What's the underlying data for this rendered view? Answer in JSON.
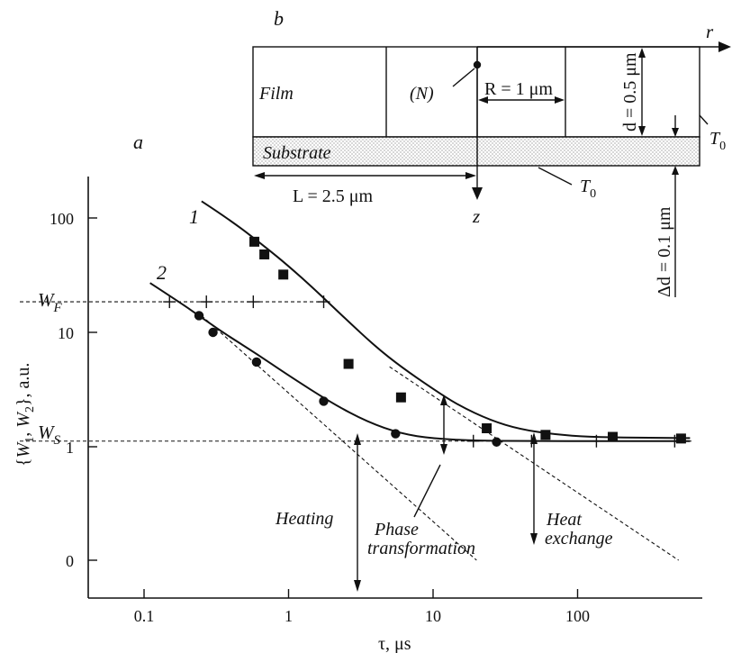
{
  "panel_a_label": "a",
  "panel_b_label": "b",
  "chart_data": {
    "type": "scatter",
    "xlabel": "τ, μs",
    "ylabel": "{W1, W2}, a.u.",
    "x_scale": "log",
    "xlim": [
      0.04,
      900
    ],
    "x_ticks": [
      0.1,
      1,
      10,
      100
    ],
    "x_tick_labels": [
      "0.1",
      "1",
      "10",
      "100"
    ],
    "y_ticks": [
      {
        "pos": 100,
        "label": "100"
      },
      {
        "pos": 10,
        "label": "10"
      },
      {
        "pos": 1,
        "label": "1"
      },
      {
        "pos": 0,
        "label": "0"
      }
    ],
    "series": [
      {
        "name": "1",
        "marker": "square",
        "points": [
          [
            0.58,
            62
          ],
          [
            0.68,
            48
          ],
          [
            0.92,
            32
          ],
          [
            2.6,
            5.3
          ],
          [
            6.0,
            2.7
          ],
          [
            23.5,
            1.45
          ],
          [
            60,
            1.27
          ],
          [
            175,
            1.22
          ],
          [
            520,
            1.18
          ]
        ],
        "fit": [
          [
            0.25,
            140
          ],
          [
            0.4,
            95
          ],
          [
            0.7,
            55
          ],
          [
            1.0,
            38
          ],
          [
            1.5,
            24
          ],
          [
            2.5,
            13
          ],
          [
            4,
            7.5
          ],
          [
            6,
            5.0
          ],
          [
            10,
            3.2
          ],
          [
            15,
            2.3
          ],
          [
            25,
            1.7
          ],
          [
            40,
            1.42
          ],
          [
            70,
            1.28
          ],
          [
            120,
            1.22
          ],
          [
            250,
            1.2
          ],
          [
            600,
            1.19
          ]
        ]
      },
      {
        "name": "2",
        "marker": "circle",
        "points": [
          [
            0.24,
            14
          ],
          [
            0.3,
            10
          ],
          [
            0.6,
            5.5
          ],
          [
            1.75,
            2.5
          ],
          [
            5.5,
            1.3
          ],
          [
            27.5,
            1.1
          ]
        ],
        "fit": [
          [
            0.11,
            27
          ],
          [
            0.18,
            18
          ],
          [
            0.25,
            13.5
          ],
          [
            0.35,
            10
          ],
          [
            0.6,
            6.5
          ],
          [
            1.0,
            4.2
          ],
          [
            2.0,
            2.4
          ],
          [
            3.5,
            1.65
          ],
          [
            6,
            1.3
          ],
          [
            10,
            1.18
          ],
          [
            20,
            1.13
          ],
          [
            50,
            1.12
          ],
          [
            150,
            1.12
          ],
          [
            600,
            1.12
          ]
        ]
      }
    ],
    "reference_lines": [
      {
        "label": "W_F",
        "value": 18.5
      },
      {
        "label": "W_S",
        "value": 1.12
      }
    ],
    "wf_plus_markers": [
      0.15,
      0.27,
      0.57,
      1.75
    ],
    "ws_plus_markers": [
      19,
      48,
      135,
      470
    ],
    "dashed_asymptotes": [
      {
        "from": [
          0.25,
          14
        ],
        "to": [
          20,
          0
        ]
      },
      {
        "from": [
          5,
          5
        ],
        "to": [
          500,
          0
        ]
      }
    ],
    "annotations": {
      "heating": "Heating",
      "phase_1": "Phase",
      "phase_2": "transformation",
      "heat_1": "Heat",
      "heat_2": "exchange"
    }
  },
  "schematic": {
    "film": "Film",
    "substrate": "Substrate",
    "node": "(N)",
    "r_label": "r",
    "z_label": "z",
    "R_label": "R = 1 μm",
    "L_label": "L = 2.5 μm",
    "d_label": "d = 0.5 μm",
    "dd_label": "Δd = 0.1 μm",
    "T0": "T",
    "T0_sub": "0"
  }
}
